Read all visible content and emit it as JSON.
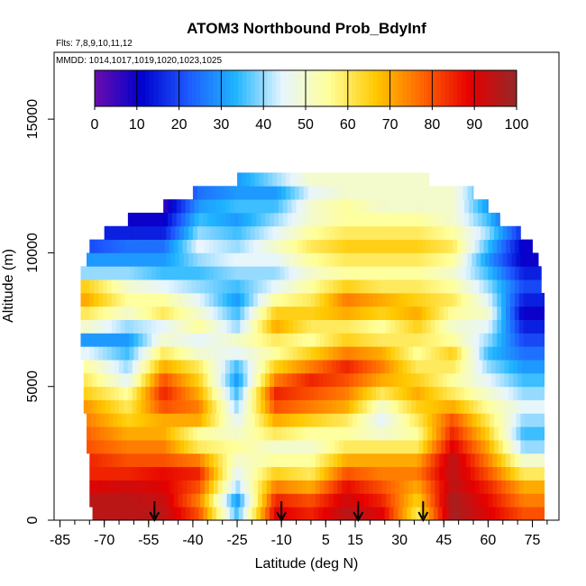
{
  "chart_data": {
    "type": "heatmap",
    "title": "ATOM3 Northbound Prob_BdyInf",
    "flights_note": "Flts: 7,8,9,10,11,12",
    "dates_note": "MMDD: 1014,1017,1019,1020,1023,1025",
    "xlabel": "Latitude (deg N)",
    "ylabel": "Altitude (m)",
    "xlim": [
      -87,
      84
    ],
    "ylim": [
      0,
      17500
    ],
    "x_ticks": [
      -85,
      -70,
      -55,
      -40,
      -25,
      -10,
      5,
      15,
      30,
      45,
      60,
      75
    ],
    "x_tick_labels": [
      "-85",
      "-70",
      "-55",
      "-40",
      "-25",
      "-10",
      "5",
      "15",
      "30",
      "45",
      "60",
      "75"
    ],
    "y_ticks": [
      0,
      5000,
      10000,
      15000
    ],
    "y_tick_labels": [
      "0",
      "5000",
      "10000",
      "15000"
    ],
    "colorbar": {
      "min": 0,
      "max": 100,
      "ticks": [
        0,
        10,
        20,
        30,
        40,
        50,
        60,
        70,
        80,
        90,
        100
      ],
      "tick_labels": [
        "0",
        "10",
        "20",
        "30",
        "40",
        "50",
        "60",
        "70",
        "80",
        "90",
        "100"
      ],
      "colors": [
        "#6a0dad",
        "#0000cd",
        "#1e5aff",
        "#1eb4ff",
        "#e6f5ff",
        "#ffff99",
        "#ffc800",
        "#ff6400",
        "#e60000",
        "#962828"
      ]
    },
    "arrows_at_latitude": [
      -53,
      -10,
      16,
      38
    ],
    "altitude_bins_m": [
      250,
      750,
      1250,
      1750,
      2250,
      2750,
      3250,
      3750,
      4250,
      4750,
      5250,
      5750,
      6250,
      6750,
      7250,
      7750,
      8250,
      8750,
      9250,
      9750,
      10250,
      10750,
      11250,
      11750,
      12250,
      12750
    ],
    "latitude_extent_by_altitude": [
      [
        -74,
        79
      ],
      [
        -75,
        79
      ],
      [
        -75,
        79
      ],
      [
        -75,
        79
      ],
      [
        -75,
        79
      ],
      [
        -76,
        79
      ],
      [
        -76,
        79
      ],
      [
        -76,
        79
      ],
      [
        -77,
        79
      ],
      [
        -77,
        79
      ],
      [
        -77,
        79
      ],
      [
        -77,
        79
      ],
      [
        -78,
        79
      ],
      [
        -78,
        79
      ],
      [
        -78,
        79
      ],
      [
        -78,
        79
      ],
      [
        -78,
        79
      ],
      [
        -78,
        78
      ],
      [
        -78,
        78
      ],
      [
        -76,
        77
      ],
      [
        -75,
        75
      ],
      [
        -70,
        71
      ],
      [
        -62,
        64
      ],
      [
        -50,
        60
      ],
      [
        -40,
        55
      ],
      [
        -25,
        40
      ]
    ],
    "profile_latitudes": [
      -76,
      -62,
      -50,
      -38,
      -25,
      -12,
      0,
      12,
      24,
      36,
      48,
      60,
      72
    ],
    "profile_values": [
      [
        95,
        95,
        90,
        85,
        85,
        80,
        78,
        75,
        72,
        65,
        60,
        55,
        45,
        30,
        50,
        60,
        70,
        65,
        40,
        30,
        20,
        15,
        10,
        10,
        10,
        10
      ],
      [
        95,
        95,
        92,
        85,
        80,
        75,
        70,
        65,
        60,
        55,
        45,
        40,
        35,
        30,
        40,
        50,
        55,
        50,
        40,
        30,
        25,
        15,
        10,
        5,
        5,
        5
      ],
      [
        95,
        93,
        90,
        88,
        80,
        75,
        70,
        70,
        80,
        85,
        80,
        70,
        60,
        50,
        45,
        60,
        55,
        45,
        35,
        30,
        25,
        15,
        10,
        5,
        5,
        5
      ],
      [
        80,
        75,
        80,
        85,
        75,
        60,
        55,
        70,
        75,
        70,
        65,
        60,
        50,
        45,
        55,
        50,
        45,
        40,
        35,
        40,
        45,
        40,
        35,
        30,
        25,
        25
      ],
      [
        35,
        30,
        40,
        45,
        50,
        55,
        50,
        45,
        40,
        35,
        30,
        35,
        45,
        50,
        40,
        35,
        30,
        35,
        40,
        45,
        40,
        35,
        30,
        35,
        30,
        30
      ],
      [
        90,
        85,
        75,
        65,
        55,
        50,
        60,
        70,
        80,
        85,
        75,
        65,
        55,
        60,
        70,
        65,
        55,
        45,
        40,
        45,
        50,
        45,
        40,
        35,
        30,
        40
      ],
      [
        85,
        80,
        70,
        60,
        55,
        50,
        55,
        65,
        75,
        80,
        85,
        75,
        65,
        55,
        60,
        65,
        60,
        55,
        50,
        55,
        60,
        55,
        50,
        50,
        45,
        50
      ],
      [
        95,
        92,
        88,
        80,
        70,
        60,
        55,
        60,
        70,
        75,
        80,
        85,
        75,
        65,
        60,
        70,
        75,
        65,
        55,
        60,
        65,
        60,
        55,
        55,
        50,
        50
      ],
      [
        90,
        85,
        80,
        75,
        70,
        60,
        50,
        45,
        50,
        60,
        70,
        75,
        70,
        60,
        55,
        65,
        70,
        60,
        55,
        60,
        65,
        60,
        55,
        50,
        50,
        50
      ],
      [
        60,
        65,
        70,
        75,
        70,
        60,
        55,
        60,
        65,
        70,
        65,
        60,
        55,
        60,
        65,
        70,
        65,
        60,
        55,
        60,
        65,
        60,
        55,
        50,
        50,
        50
      ],
      [
        98,
        98,
        95,
        95,
        95,
        90,
        85,
        80,
        70,
        60,
        55,
        60,
        65,
        55,
        50,
        55,
        60,
        55,
        50,
        55,
        60,
        55,
        50,
        50,
        50,
        50
      ],
      [
        90,
        88,
        85,
        80,
        75,
        70,
        65,
        60,
        55,
        50,
        45,
        40,
        35,
        40,
        45,
        50,
        45,
        40,
        35,
        30,
        35,
        40,
        35,
        30,
        30,
        30
      ],
      [
        80,
        75,
        70,
        60,
        50,
        40,
        35,
        40,
        45,
        40,
        35,
        30,
        25,
        20,
        15,
        10,
        15,
        20,
        15,
        10,
        10,
        15,
        10,
        10,
        10,
        10
      ]
    ]
  }
}
